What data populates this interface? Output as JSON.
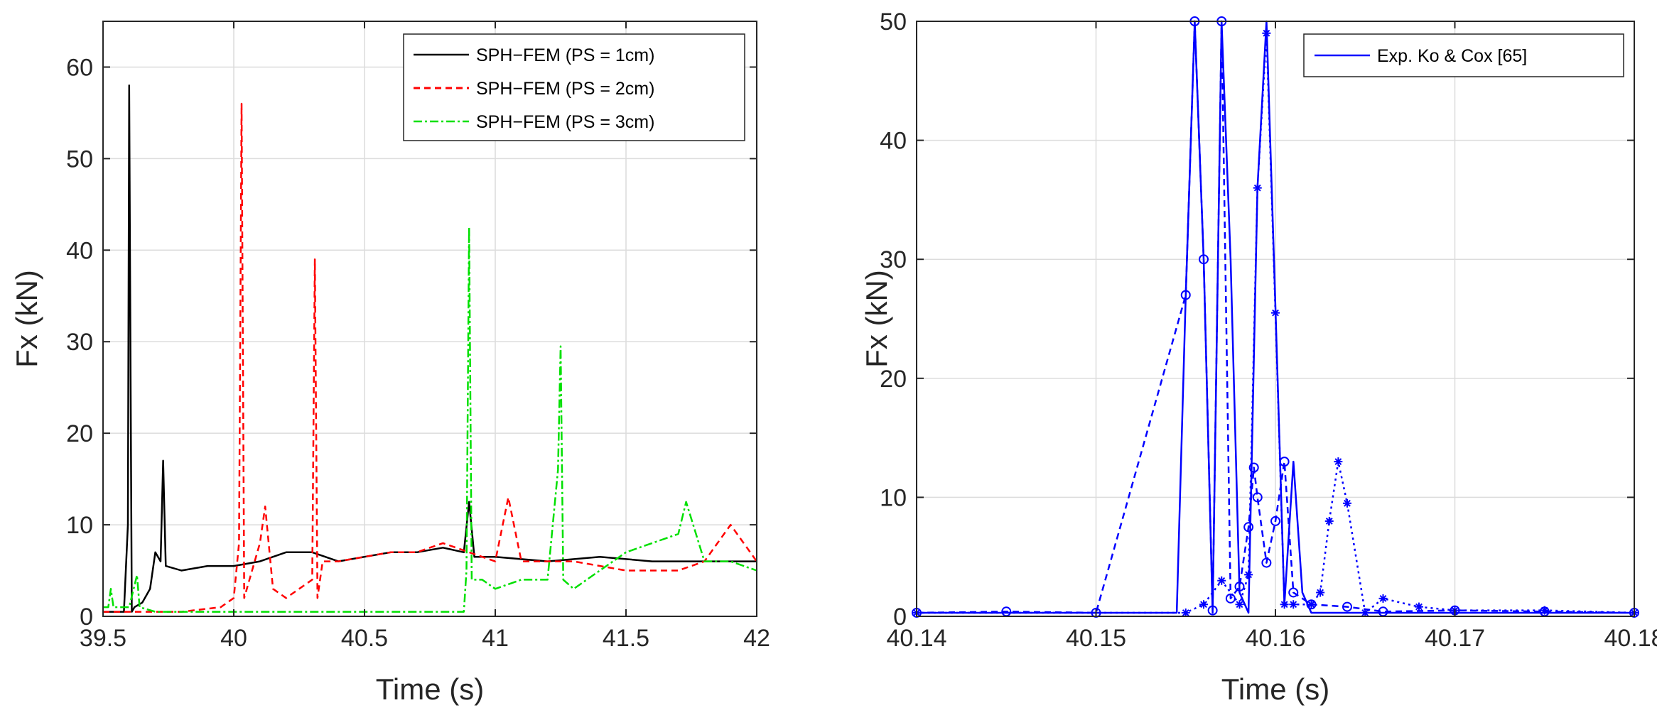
{
  "chart_data": [
    {
      "type": "line",
      "title": "",
      "xlabel": "Time (s)",
      "ylabel": "Fx (kN)",
      "xlim": [
        39.5,
        42
      ],
      "ylim": [
        0,
        65
      ],
      "xticks": [
        39.5,
        40,
        40.5,
        41,
        41.5,
        42
      ],
      "xtick_labels": [
        "39.5",
        "40",
        "40.5",
        "41",
        "41.5",
        "42"
      ],
      "yticks": [
        0,
        10,
        20,
        30,
        40,
        50,
        60
      ],
      "ytick_labels": [
        "0",
        "10",
        "20",
        "30",
        "40",
        "50",
        "60"
      ],
      "grid": true,
      "legend_position": "top-right",
      "series": [
        {
          "name": "SPH−FEM (PS = 1cm)",
          "color": "#000000",
          "style": "solid",
          "x": [
            39.5,
            39.58,
            39.595,
            39.6,
            39.605,
            39.61,
            39.62,
            39.65,
            39.68,
            39.7,
            39.72,
            39.73,
            39.74,
            39.8,
            39.9,
            40.0,
            40.1,
            40.2,
            40.3,
            40.4,
            40.5,
            40.6,
            40.7,
            40.8,
            40.88,
            40.9,
            40.92,
            41.0,
            41.2,
            41.4,
            41.6,
            41.8,
            42.0
          ],
          "y": [
            0.5,
            0.5,
            10,
            58,
            29,
            0.5,
            1,
            1.5,
            3,
            7,
            6,
            17,
            5.5,
            5,
            5.5,
            5.5,
            6,
            7,
            7,
            6,
            6.5,
            7,
            7,
            7.5,
            7,
            12.5,
            6.5,
            6.5,
            6,
            6.5,
            6,
            6,
            6
          ]
        },
        {
          "name": "SPH−FEM (PS = 2cm)",
          "color": "#ff0000",
          "style": "dashed",
          "x": [
            39.5,
            39.8,
            39.95,
            40.0,
            40.02,
            40.03,
            40.04,
            40.1,
            40.12,
            40.15,
            40.2,
            40.3,
            40.31,
            40.32,
            40.34,
            40.4,
            40.5,
            40.6,
            40.7,
            40.8,
            40.9,
            41.0,
            41.05,
            41.1,
            41.2,
            41.3,
            41.5,
            41.7,
            41.8,
            41.9,
            42.0
          ],
          "y": [
            0.5,
            0.5,
            1,
            2,
            8,
            56,
            2,
            8,
            12,
            3,
            2,
            4,
            39,
            2,
            6,
            6,
            6.5,
            7,
            7,
            8,
            7,
            6,
            13,
            6,
            6,
            6,
            5,
            5,
            6,
            10,
            6
          ]
        },
        {
          "name": "SPH−FEM (PS = 3cm)",
          "color": "#00e000",
          "style": "dashdot",
          "x": [
            39.5,
            39.52,
            39.53,
            39.54,
            39.6,
            39.63,
            39.64,
            39.7,
            39.8,
            40.0,
            40.2,
            40.4,
            40.6,
            40.8,
            40.88,
            40.89,
            40.9,
            40.91,
            40.95,
            41.0,
            41.1,
            41.2,
            41.24,
            41.25,
            41.26,
            41.3,
            41.4,
            41.5,
            41.6,
            41.7,
            41.73,
            41.8,
            41.9,
            42.0
          ],
          "y": [
            1,
            1,
            3,
            1,
            1,
            4.5,
            1,
            0.5,
            0.5,
            0.5,
            0.5,
            0.5,
            0.5,
            0.5,
            0.5,
            5,
            42.5,
            4,
            4,
            3,
            4,
            4,
            16,
            29.5,
            4,
            3,
            5,
            7,
            8,
            9,
            12.5,
            6,
            6,
            5
          ]
        }
      ]
    },
    {
      "type": "line",
      "title": "",
      "xlabel": "Time (s)",
      "ylabel": "Fx (kN)",
      "xlim": [
        40.14,
        40.18
      ],
      "ylim": [
        0,
        50
      ],
      "xticks": [
        40.14,
        40.15,
        40.16,
        40.17,
        40.18
      ],
      "xtick_labels": [
        "40.14",
        "40.15",
        "40.16",
        "40.17",
        "40.18"
      ],
      "yticks": [
        0,
        10,
        20,
        30,
        40,
        50
      ],
      "ytick_labels": [
        "0",
        "10",
        "20",
        "30",
        "40",
        "50"
      ],
      "grid": true,
      "legend_position": "top-right",
      "series": [
        {
          "name": "Exp. Ko & Cox [65]",
          "color": "#0000ff",
          "style": "solid",
          "x": [
            40.14,
            40.154,
            40.1545,
            40.155,
            40.1555,
            40.156,
            40.1565,
            40.157,
            40.1575,
            40.158,
            40.1585,
            40.159,
            40.1595,
            40.16,
            40.1605,
            40.161,
            40.1615,
            40.162,
            40.164,
            40.18
          ],
          "y": [
            0.3,
            0.3,
            0.3,
            27,
            50,
            30,
            0.3,
            50,
            30,
            2,
            0.3,
            36,
            50,
            26,
            1,
            13,
            2,
            0.3,
            0.3,
            0.3
          ]
        },
        {
          "name": "",
          "color": "#0000ff",
          "style": "dashed",
          "marker": "circle",
          "x": [
            40.14,
            40.145,
            40.15,
            40.155,
            40.1555,
            40.156,
            40.1565,
            40.157,
            40.1575,
            40.158,
            40.1585,
            40.1588,
            40.159,
            40.1595,
            40.16,
            40.1605,
            40.161,
            40.162,
            40.164,
            40.166,
            40.17,
            40.175,
            40.18
          ],
          "y": [
            0.3,
            0.4,
            0.3,
            27,
            50,
            30,
            0.5,
            50,
            1.5,
            2.5,
            7.5,
            12.5,
            10,
            4.5,
            8,
            13,
            2,
            1,
            0.8,
            0.4,
            0.5,
            0.4,
            0.3
          ]
        },
        {
          "name": "",
          "color": "#0000ff",
          "style": "dotted",
          "marker": "star",
          "x": [
            40.14,
            40.155,
            40.156,
            40.157,
            40.158,
            40.1585,
            40.159,
            40.1595,
            40.16,
            40.1605,
            40.161,
            40.162,
            40.1625,
            40.163,
            40.1635,
            40.164,
            40.165,
            40.166,
            40.168,
            40.17,
            40.175,
            40.18
          ],
          "y": [
            0.3,
            0.3,
            1,
            3,
            1,
            3.5,
            36,
            49,
            25.5,
            1,
            1,
            1,
            2,
            8,
            13,
            9.5,
            0.3,
            1.5,
            0.8,
            0.5,
            0.5,
            0.3
          ]
        }
      ]
    }
  ]
}
